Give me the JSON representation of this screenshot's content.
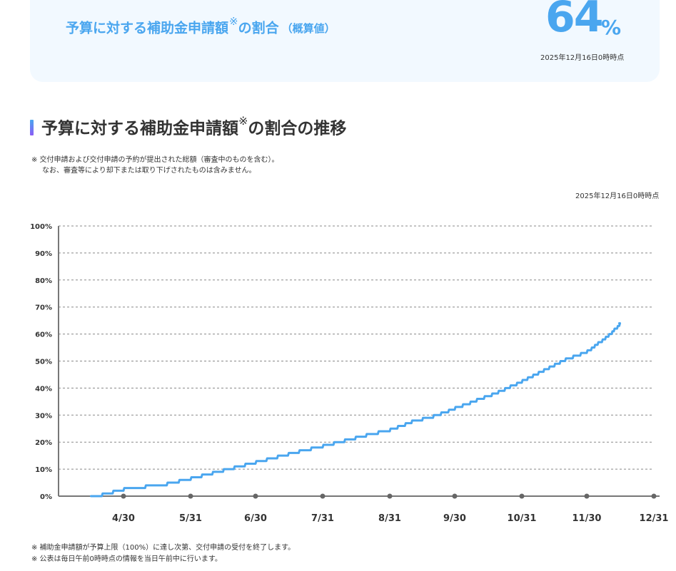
{
  "summary": {
    "label_main": "予算に対する補助金申請額",
    "label_mark": "※",
    "label_tail": "の割合",
    "label_paren": "（概算値）",
    "value": "64",
    "unit": "%",
    "as_of": "2025年12月16日0時時点"
  },
  "section": {
    "title_main": "予算に対する補助金申請額",
    "title_mark": "※",
    "title_tail": "の割合の推移",
    "note_line1": "※ 交付申請および交付申請の予約が提出された総額（審査中のものを含む）。",
    "note_line2": "なお、審査等により却下または取り下げされたものは含みません。",
    "as_of": "2025年12月16日0時時点"
  },
  "footer": {
    "note1": "※ 補助金申請額が予算上限（100%）に達し次第、交付申請の受付を終了します。",
    "note2": "※ 公表は毎日午前0時時点の情報を当日午前中に行います。"
  },
  "colors": {
    "accent": "#4aa6ef",
    "line": "#4aa6ef",
    "grid": "#888888",
    "axis": "#777777"
  },
  "chart_data": {
    "type": "line",
    "title": "予算に対する補助金申請額※の割合の推移",
    "xlabel": "",
    "ylabel": "",
    "y_ticks": [
      "0%",
      "10%",
      "20%",
      "30%",
      "40%",
      "50%",
      "60%",
      "70%",
      "80%",
      "90%",
      "100%"
    ],
    "ylim": [
      0,
      100
    ],
    "x_ticks": [
      "4/30",
      "5/31",
      "6/30",
      "7/31",
      "8/31",
      "9/30",
      "10/31",
      "11/30",
      "12/31"
    ],
    "xlim": [
      "2025-03-31",
      "2025-12-31"
    ],
    "grid": true,
    "series": [
      {
        "name": "",
        "x": [
          "2025-04-15",
          "2025-04-20",
          "2025-04-25",
          "2025-04-30",
          "2025-05-10",
          "2025-05-20",
          "2025-05-31",
          "2025-06-10",
          "2025-06-20",
          "2025-06-30",
          "2025-07-10",
          "2025-07-20",
          "2025-07-31",
          "2025-08-10",
          "2025-08-20",
          "2025-08-31",
          "2025-09-10",
          "2025-09-20",
          "2025-09-30",
          "2025-10-10",
          "2025-10-20",
          "2025-10-31",
          "2025-11-10",
          "2025-11-20",
          "2025-11-30",
          "2025-12-10",
          "2025-12-15"
        ],
        "values": [
          0,
          1,
          2,
          3,
          4,
          5,
          7,
          9,
          11,
          13,
          15,
          17,
          19,
          21,
          23,
          25,
          28,
          30,
          33,
          36,
          39,
          43,
          47,
          51,
          54,
          60,
          64
        ]
      }
    ]
  }
}
